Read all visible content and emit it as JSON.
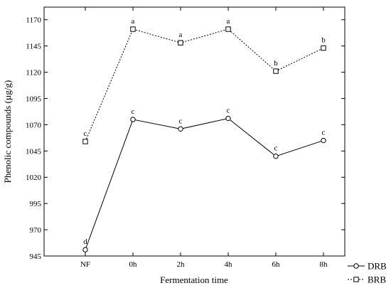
{
  "chart_data": {
    "type": "line",
    "xlabel": "Fermentation time",
    "ylabel": "Phenolic compounds (µg/g)",
    "categories": [
      "NF",
      "0h",
      "2h",
      "4h",
      "6h",
      "8h"
    ],
    "ylim": [
      945,
      1182
    ],
    "yticks": [
      945,
      970,
      995,
      1020,
      1045,
      1070,
      1095,
      1120,
      1145,
      1170
    ],
    "grid": false,
    "legend_position": "bottom-right, outside plot",
    "series": [
      {
        "name": "DRB",
        "marker": "circle",
        "line_style": "solid",
        "values": [
          951,
          1075,
          1066,
          1076,
          1040,
          1055
        ],
        "letters": [
          "d",
          "c",
          "c",
          "c",
          "c",
          "c"
        ]
      },
      {
        "name": "BRB",
        "marker": "square",
        "line_style": "dotted",
        "values": [
          1054,
          1161,
          1148,
          1161,
          1121,
          1143
        ],
        "letters": [
          "c",
          "a",
          "a",
          "a",
          "b",
          "b"
        ]
      }
    ]
  }
}
